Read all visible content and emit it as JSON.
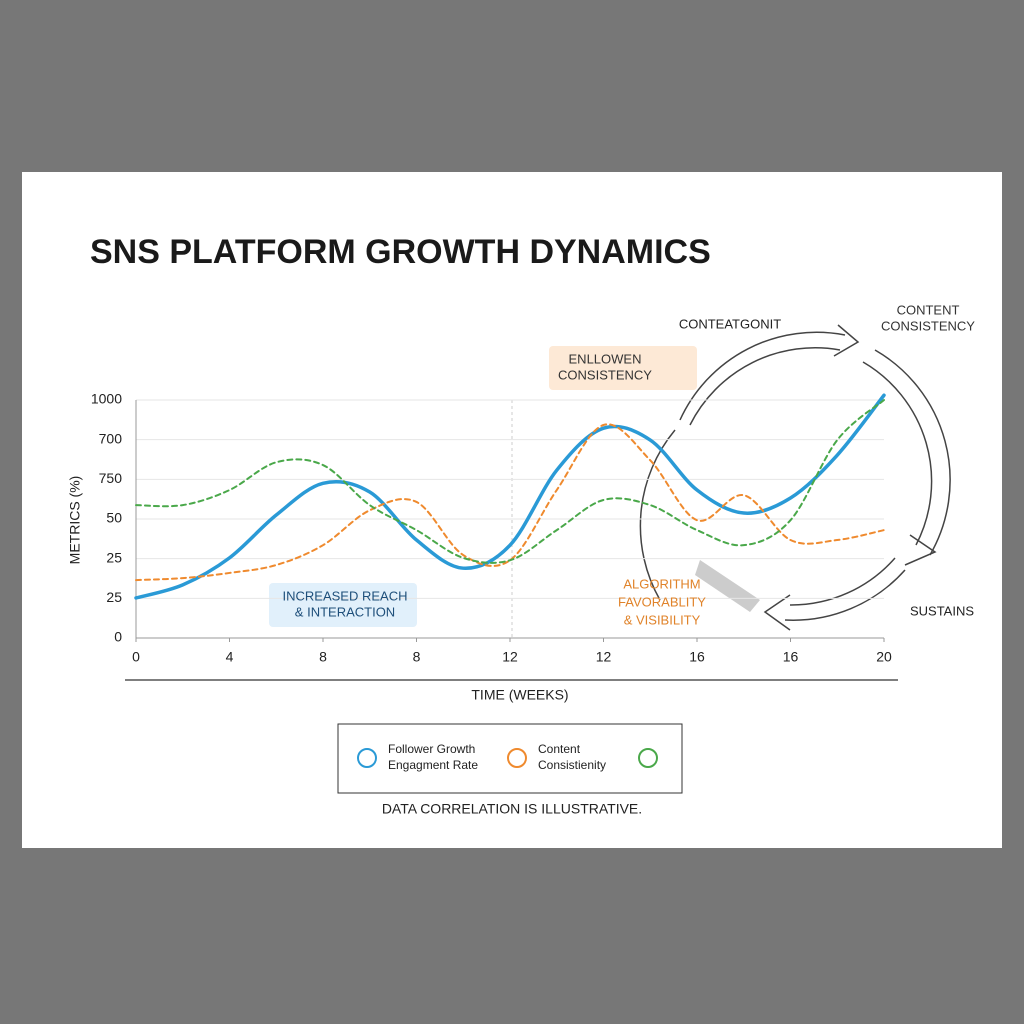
{
  "chart_data": {
    "type": "line",
    "title": "SNS PLATFORM GROWTH DYNAMICS",
    "ylabel": "METRICS (%)",
    "xlabel": "TIME (WEEKS)",
    "xlim": [
      0,
      8
    ],
    "ylim": [
      0,
      6
    ],
    "xticks": [
      0,
      {
        "value": 1,
        "label": "4"
      },
      {
        "value": 2,
        "label": "8"
      },
      {
        "value": 3,
        "label": "8"
      },
      {
        "value": 4,
        "label": "12"
      },
      {
        "value": 5,
        "label": "12"
      },
      {
        "value": 6,
        "label": "16"
      },
      {
        "value": 7,
        "label": "16"
      },
      {
        "value": 8,
        "label": "20"
      }
    ],
    "yticks": [
      0,
      {
        "value": 1,
        "label": "25"
      },
      {
        "value": 2,
        "label": "25"
      },
      {
        "value": 3,
        "label": "50"
      },
      {
        "value": 4,
        "label": "750"
      },
      {
        "value": 5,
        "label": "700"
      },
      {
        "value": 6,
        "label": "1000"
      }
    ],
    "grid": true,
    "x": [
      0,
      0.5,
      1,
      1.5,
      2,
      2.5,
      3,
      3.5,
      4,
      4.5,
      5,
      5.5,
      6,
      6.5,
      7,
      7.5,
      8
    ],
    "series": [
      {
        "color": "#2a9ad6",
        "dash": false,
        "values": [
          1.01,
          1.34,
          2.02,
          3.1,
          3.9,
          3.68,
          2.47,
          1.76,
          2.34,
          4.23,
          5.29,
          4.99,
          3.73,
          3.15,
          3.53,
          4.61,
          6.12
        ]
      },
      {
        "color": "#ef8a2e",
        "dash": true,
        "values": [
          1.46,
          1.51,
          1.64,
          1.84,
          2.34,
          3.22,
          3.43,
          2.09,
          1.96,
          3.73,
          5.37,
          4.48,
          2.97,
          3.6,
          2.47,
          2.47,
          2.72
        ]
      },
      {
        "color": "#4aa84a",
        "dash": true,
        "values": [
          3.35,
          3.35,
          3.73,
          4.43,
          4.36,
          3.35,
          2.72,
          2.02,
          1.96,
          2.72,
          3.48,
          3.35,
          2.72,
          2.34,
          2.97,
          4.99,
          6.0
        ]
      }
    ],
    "legend": [
      {
        "lines": [
          "Follower Growth",
          "Engagment Rate"
        ],
        "color": "#2a9ad6"
      },
      {
        "lines": [
          "Content",
          "Consistienity"
        ],
        "color": "#ef8a2e"
      },
      {
        "lines": [],
        "color": "#4aa84a"
      }
    ],
    "annotations": {
      "enllowen": [
        "ENLLOWEN",
        "CONSISTENCY"
      ],
      "reach": [
        "INCREASED REACH",
        "& INTERACTION"
      ],
      "algorithm": [
        "ALGORITHM",
        "FAVORABLITY",
        "& VISIBILITY"
      ],
      "contentgonit": "CONTEATGONIT",
      "content_consistency": [
        "CONTENT",
        "CONSISTENCY"
      ],
      "sustains": "SUSTAINS"
    },
    "footnote": "DATA CORRELATION IS ILLUSTRATIVE."
  }
}
